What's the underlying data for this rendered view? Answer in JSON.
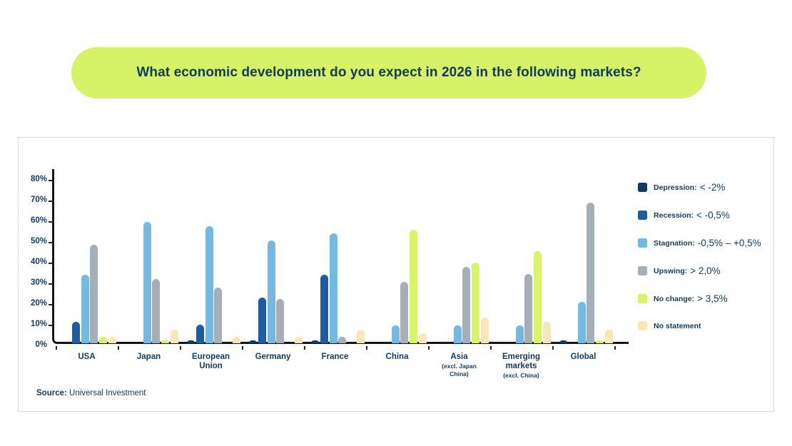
{
  "title": "What economic development do you expect in 2026 in the following markets?",
  "banner_bg": "#d6f266",
  "text_navy": "#12395e",
  "source_label": "Source:",
  "source_text": "Universal Investment",
  "chart_data": {
    "type": "bar",
    "title": "What economic development do you expect in 2026 in the following markets?",
    "xlabel": "",
    "ylabel": "",
    "ylim": [
      0,
      84
    ],
    "grid": false,
    "legend_position": "right",
    "yticks": [
      "0%",
      "10%",
      "20%",
      "30%",
      "40%",
      "50%",
      "60%",
      "70%",
      "80%"
    ],
    "categories": [
      {
        "lines": [
          "USA"
        ],
        "sub": []
      },
      {
        "lines": [
          "Japan"
        ],
        "sub": []
      },
      {
        "lines": [
          "European",
          "Union"
        ],
        "sub": []
      },
      {
        "lines": [
          "Germany"
        ],
        "sub": []
      },
      {
        "lines": [
          "France"
        ],
        "sub": []
      },
      {
        "lines": [
          "China"
        ],
        "sub": []
      },
      {
        "lines": [
          "Asia"
        ],
        "sub": [
          "(excl. Japan",
          "China)"
        ]
      },
      {
        "lines": [
          "Emerging",
          "markets"
        ],
        "sub": [
          "(excl. China)"
        ]
      },
      {
        "lines": [
          "Global"
        ],
        "sub": []
      }
    ],
    "series": [
      {
        "name": "Depression",
        "legend_label": "Depression:",
        "legend_value": "< -2%",
        "color": "#12395e",
        "values": [
          0,
          0,
          1.5,
          1.5,
          1.5,
          0,
          0,
          0,
          1.5
        ]
      },
      {
        "name": "Recession",
        "legend_label": "Recession:",
        "legend_value": "< -0,5%",
        "color": "#1d5c9e",
        "values": [
          10.5,
          0,
          9,
          22,
          33,
          0,
          0,
          0,
          0
        ]
      },
      {
        "name": "Stagnation",
        "legend_label": "Stagnation:",
        "legend_value": "-0,5% – +0,5%",
        "color": "#74b9e1",
        "values": [
          33,
          58.5,
          56.5,
          49.5,
          53,
          8.5,
          8.5,
          8.5,
          20
        ]
      },
      {
        "name": "Upswing",
        "legend_label": "Upswing:",
        "legend_value": "> 2,0%",
        "color": "#a6aeb8",
        "values": [
          47.5,
          31,
          27,
          21.5,
          3,
          29.5,
          37,
          33.5,
          68
        ]
      },
      {
        "name": "No change",
        "legend_label": "No change:",
        "legend_value": "> 3,5%",
        "color": "#d9f36b",
        "values": [
          3,
          1.5,
          0,
          0,
          0,
          55,
          39,
          44.5,
          1.5
        ]
      },
      {
        "name": "No statement",
        "legend_label": "No statement",
        "legend_value": "",
        "color": "#f9e7b9",
        "values": [
          3,
          6.5,
          3,
          3,
          6.5,
          5,
          12.5,
          10.5,
          6.5
        ]
      }
    ]
  }
}
